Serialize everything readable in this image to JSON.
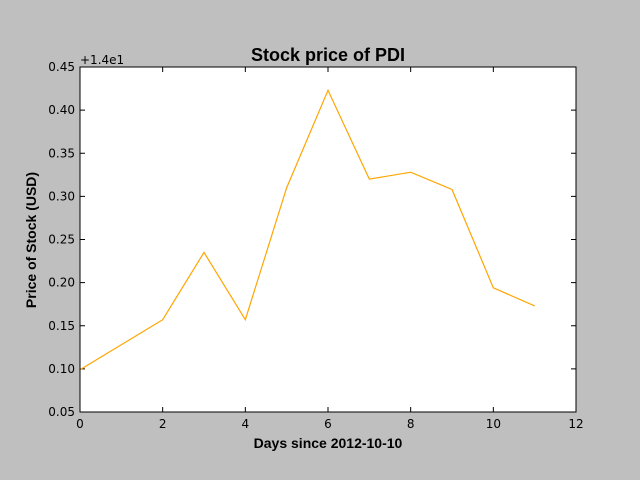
{
  "chart_data": {
    "type": "line",
    "title": "Stock price of PDI",
    "xlabel": "Days since 2012-10-10",
    "ylabel": "Price of Stock (USD)",
    "y_offset_label": "+1.4e1",
    "xlim": [
      0,
      12
    ],
    "ylim": [
      0.05,
      0.45
    ],
    "x_ticks": [
      0,
      2,
      4,
      6,
      8,
      10,
      12
    ],
    "x_tick_labels": [
      "0",
      "2",
      "4",
      "6",
      "8",
      "10",
      "12"
    ],
    "y_ticks": [
      0.05,
      0.1,
      0.15,
      0.2,
      0.25,
      0.3,
      0.35,
      0.4,
      0.45
    ],
    "y_tick_labels": [
      "0.05",
      "0.10",
      "0.15",
      "0.20",
      "0.25",
      "0.30",
      "0.35",
      "0.40",
      "0.45"
    ],
    "grid": false,
    "series": [
      {
        "color": "#ffa500",
        "x": [
          0,
          2,
          3,
          4,
          5,
          6,
          7,
          8,
          9,
          10,
          11
        ],
        "y": [
          0.099,
          0.157,
          0.235,
          0.157,
          0.31,
          0.423,
          0.32,
          0.328,
          0.308,
          0.194,
          0.173
        ]
      }
    ]
  }
}
